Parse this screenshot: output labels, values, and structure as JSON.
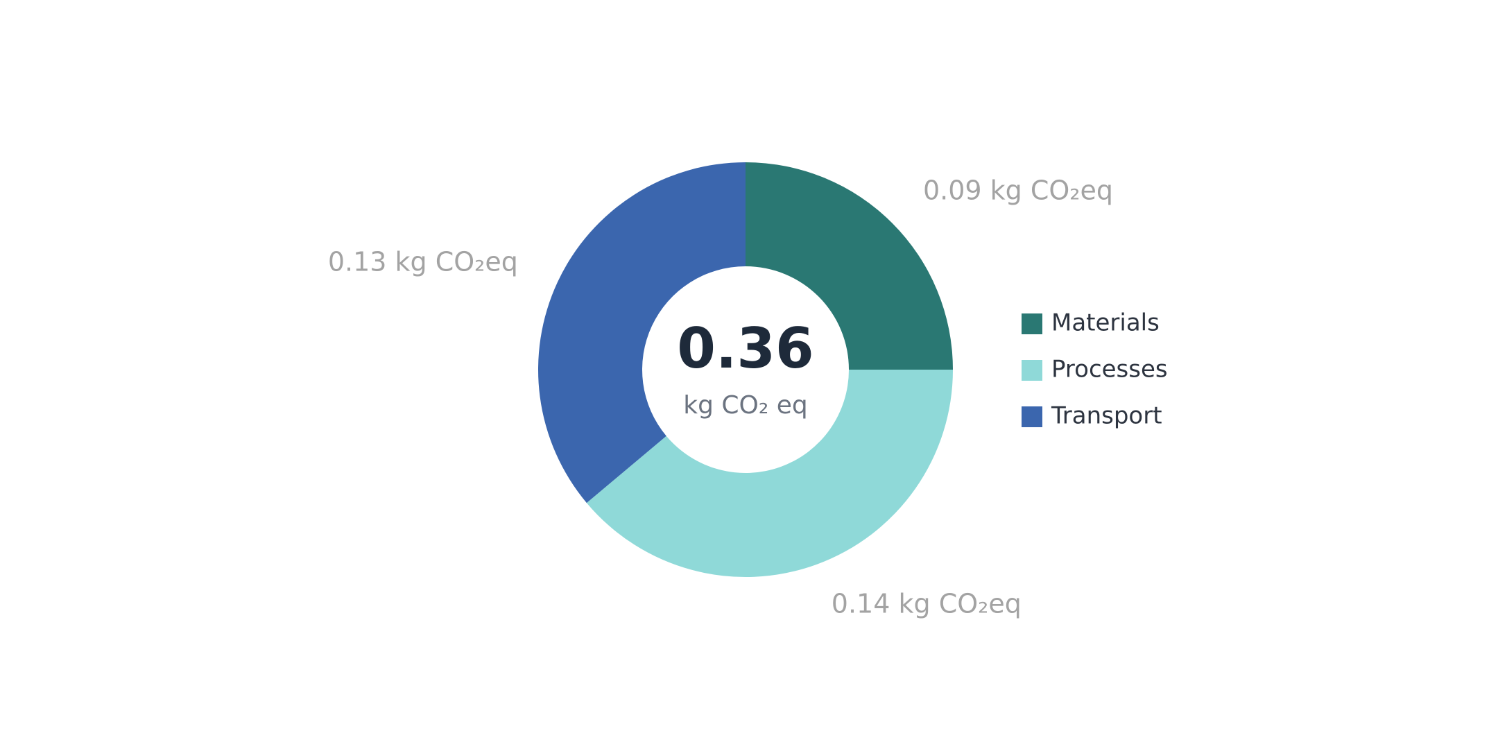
{
  "chart_data": {
    "type": "donut",
    "categories": [
      "Materials",
      "Processes",
      "Transport"
    ],
    "values": [
      0.09,
      0.14,
      0.13
    ],
    "value_labels": [
      "0.09 kg CO₂eq",
      "0.14 kg CO₂eq",
      "0.13 kg CO₂eq"
    ],
    "colors": [
      "#2a7873",
      "#8fd9d8",
      "#3b66ae"
    ],
    "total": 0.36,
    "total_unit": "kg CO₂ eq",
    "legend": "right"
  }
}
